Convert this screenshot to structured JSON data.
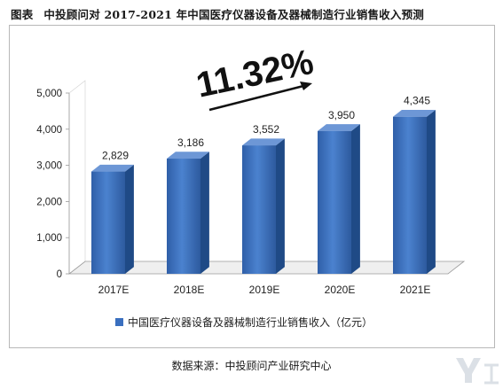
{
  "header": {
    "tag": "图表",
    "title": "中投顾问对 2017-2021 年中国医疗仪器设备及器械制造行业销售收入预测"
  },
  "source": "数据来源：中投顾问产业研究中心",
  "chart_data": {
    "type": "bar",
    "categories": [
      "2017E",
      "2018E",
      "2019E",
      "2020E",
      "2021E"
    ],
    "series": [
      {
        "name": "中国医疗仪器设备及器械制造行业销售收入（亿元）",
        "values": [
          2829,
          3186,
          3552,
          3950,
          4345
        ],
        "color": "#3a6fbf"
      }
    ],
    "value_labels": [
      "2,829",
      "3,186",
      "3,552",
      "3,950",
      "4,345"
    ],
    "ylim": [
      0,
      5000
    ],
    "yticks": [
      "0",
      "1,000",
      "2,000",
      "3,000",
      "4,000",
      "5,000"
    ],
    "annotation": "11.32%",
    "legend_position": "bottom",
    "grid": false
  }
}
